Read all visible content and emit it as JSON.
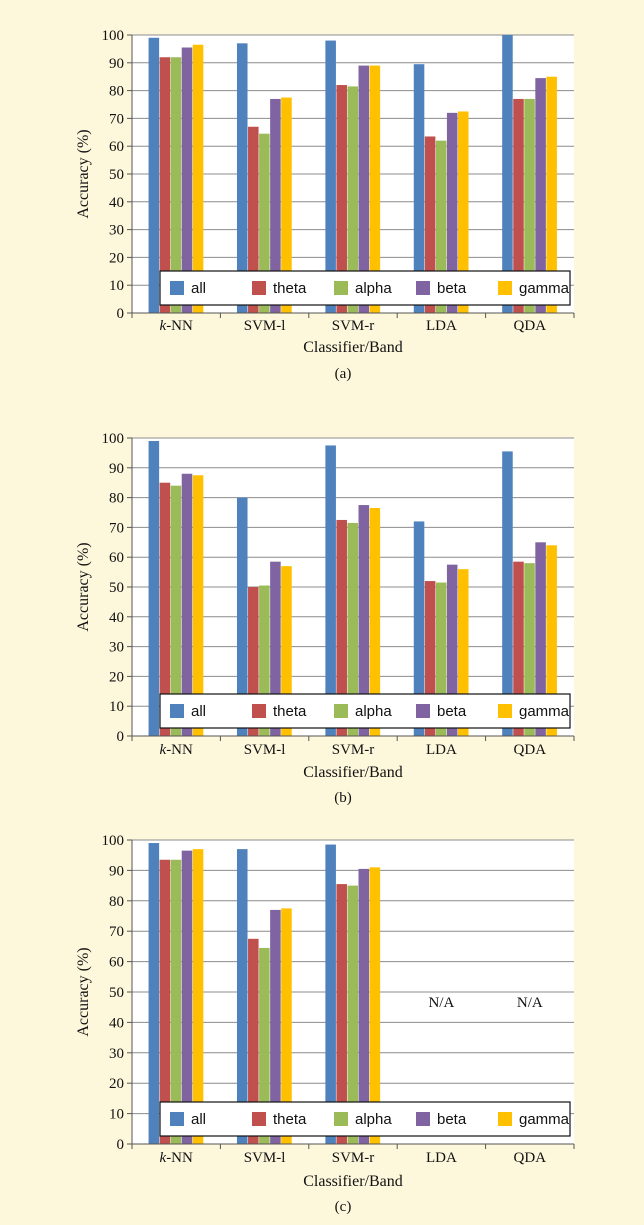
{
  "chart_data": [
    {
      "type": "bar",
      "xlabel": "Classifier/Band",
      "ylabel": "Accuracy (%)",
      "caption": "(a)",
      "ylim": [
        0,
        100
      ],
      "yticks": [
        "0",
        "10",
        "20",
        "30",
        "40",
        "50",
        "60",
        "70",
        "80",
        "90",
        "100"
      ],
      "categories": [
        "k-NN",
        "SVM-l",
        "SVM-r",
        "LDA",
        "QDA"
      ],
      "grid": true,
      "legend_position": "bottom",
      "series": [
        {
          "name": "all",
          "color": "#4f81bd",
          "values": [
            99,
            97,
            98,
            89.5,
            100
          ]
        },
        {
          "name": "theta",
          "color": "#c0504d",
          "values": [
            92,
            67,
            82,
            63.5,
            77
          ]
        },
        {
          "name": "alpha",
          "color": "#9bbb59",
          "values": [
            92,
            64.5,
            81.5,
            62,
            77
          ]
        },
        {
          "name": "beta",
          "color": "#8064a2",
          "values": [
            95.5,
            77,
            89,
            72,
            84.5
          ]
        },
        {
          "name": "gamma",
          "color": "#ffc000",
          "values": [
            96.5,
            77.5,
            89,
            72.5,
            85
          ]
        }
      ],
      "na_labels": []
    },
    {
      "type": "bar",
      "xlabel": "Classifier/Band",
      "ylabel": "Accuracy (%)",
      "caption": "(b)",
      "ylim": [
        0,
        100
      ],
      "yticks": [
        "0",
        "10",
        "20",
        "30",
        "40",
        "50",
        "60",
        "70",
        "80",
        "90",
        "100"
      ],
      "categories": [
        "k-NN",
        "SVM-l",
        "SVM-r",
        "LDA",
        "QDA"
      ],
      "grid": true,
      "legend_position": "bottom",
      "series": [
        {
          "name": "all",
          "color": "#4f81bd",
          "values": [
            99,
            80,
            97.5,
            72,
            95.5
          ]
        },
        {
          "name": "theta",
          "color": "#c0504d",
          "values": [
            85,
            50,
            72.5,
            52,
            58.5
          ]
        },
        {
          "name": "alpha",
          "color": "#9bbb59",
          "values": [
            84,
            50.5,
            71.5,
            51.5,
            58
          ]
        },
        {
          "name": "beta",
          "color": "#8064a2",
          "values": [
            88,
            58.5,
            77.5,
            57.5,
            65
          ]
        },
        {
          "name": "gamma",
          "color": "#ffc000",
          "values": [
            87.5,
            57,
            76.5,
            56,
            64
          ]
        }
      ],
      "na_labels": []
    },
    {
      "type": "bar",
      "xlabel": "Classifier/Band",
      "ylabel": "Accuracy (%)",
      "caption": "(c)",
      "ylim": [
        0,
        100
      ],
      "yticks": [
        "0",
        "10",
        "20",
        "30",
        "40",
        "50",
        "60",
        "70",
        "80",
        "90",
        "100"
      ],
      "categories": [
        "k-NN",
        "SVM-l",
        "SVM-r",
        "LDA",
        "QDA"
      ],
      "grid": true,
      "legend_position": "bottom",
      "series": [
        {
          "name": "all",
          "color": "#4f81bd",
          "values": [
            99,
            97,
            98.5,
            null,
            null
          ]
        },
        {
          "name": "theta",
          "color": "#c0504d",
          "values": [
            93.5,
            67.5,
            85.5,
            null,
            null
          ]
        },
        {
          "name": "alpha",
          "color": "#9bbb59",
          "values": [
            93.5,
            64.5,
            85,
            null,
            null
          ]
        },
        {
          "name": "beta",
          "color": "#8064a2",
          "values": [
            96.5,
            77,
            90.5,
            null,
            null
          ]
        },
        {
          "name": "gamma",
          "color": "#ffc000",
          "values": [
            97,
            77.5,
            91,
            null,
            null
          ]
        }
      ],
      "na_labels": [
        {
          "category_index": 3,
          "text": "N/A"
        },
        {
          "category_index": 4,
          "text": "N/A"
        }
      ]
    }
  ]
}
